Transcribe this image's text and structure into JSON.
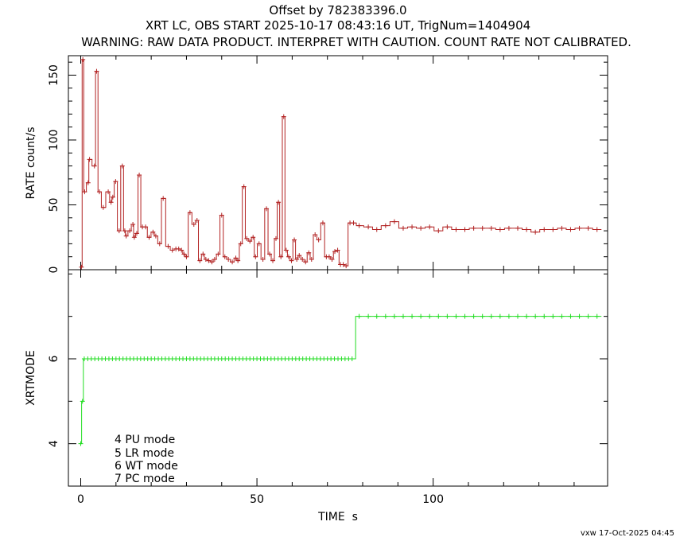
{
  "titles": {
    "line1": "Offset by 782383396.0",
    "line2": "XRT LC, OBS START 2025-10-17 08:43:16 UT, TrigNum=1404904",
    "line3": "WARNING: RAW DATA PRODUCT. INTERPRET WITH CAUTION. COUNT RATE NOT CALIBRATED."
  },
  "footer": "vxw 17-Oct-2025 04:45",
  "legend": [
    "4 PU mode",
    "5 LR mode",
    "6 WT mode",
    "7 PC mode"
  ],
  "colors": {
    "rate": "#b22222",
    "mode": "#22dd22",
    "axis": "#000000"
  },
  "chart_data": [
    {
      "type": "line",
      "panel": "top",
      "ylabel": "RATE  count/s",
      "xlim": [
        -3.5,
        149.5
      ],
      "ylim": [
        0,
        165
      ],
      "y_ticks": [
        "0",
        "50",
        "100",
        "150"
      ],
      "x_ticks": [
        "0",
        "50",
        "100"
      ],
      "series": [
        {
          "step": true,
          "x": [
            0.2,
            0.6,
            1.1,
            2.1,
            2.5,
            3.9,
            4.5,
            5.3,
            6.4,
            7.8,
            8.6,
            9.1,
            9.9,
            10.9,
            11.8,
            12.5,
            12.9,
            13.9,
            14.8,
            15.2,
            15.9,
            16.6,
            17.5,
            18.4,
            19.4,
            20.5,
            21.3,
            22.4,
            23.4,
            24.8,
            26.0,
            27.0,
            27.8,
            28.6,
            29.3,
            30.0,
            31.0,
            32.1,
            33.0,
            33.8,
            34.7,
            35.5,
            36.3,
            37.2,
            38.0,
            39.0,
            40.0,
            40.9,
            41.9,
            43.0,
            44.0,
            44.6,
            45.4,
            46.3,
            47.1,
            48.0,
            48.9,
            49.6,
            50.6,
            51.7,
            52.7,
            53.6,
            54.5,
            55.4,
            56.1,
            56.8,
            57.6,
            58.3,
            59.0,
            59.8,
            60.6,
            61.3,
            62.0,
            62.9,
            63.8,
            64.7,
            65.5,
            66.5,
            67.5,
            68.7,
            69.7,
            70.5,
            71.3,
            72.1,
            72.9,
            73.7,
            74.5,
            75.3,
            76.4,
            77.4,
            79.0,
            81.6,
            84.0,
            86.5,
            89.0,
            91.5,
            94.0,
            96.5,
            99.0,
            101.5,
            104.0,
            106.5,
            109.0,
            111.5,
            114.0,
            116.5,
            119.0,
            121.5,
            124.0,
            126.5,
            129.0,
            131.5,
            134.0,
            136.5,
            139.0,
            141.5,
            144.0,
            146.5
          ],
          "values": [
            2,
            162,
            60,
            67,
            85,
            80,
            153,
            60,
            48,
            60,
            52,
            56,
            68,
            30,
            80,
            30,
            26,
            30,
            35,
            25,
            28,
            73,
            33,
            33,
            25,
            29,
            26,
            20,
            55,
            18,
            15,
            16,
            16,
            15,
            12,
            10,
            44,
            35,
            38,
            7,
            12,
            8,
            7,
            6,
            8,
            12,
            42,
            10,
            8,
            6,
            9,
            7,
            20,
            64,
            24,
            22,
            25,
            10,
            20,
            8,
            47,
            12,
            7,
            24,
            52,
            10,
            118,
            15,
            10,
            7,
            23,
            8,
            11,
            8,
            6,
            13,
            8,
            27,
            23,
            36,
            10,
            10,
            8,
            14,
            15,
            4,
            4,
            3,
            36,
            36,
            34,
            33,
            31,
            34,
            37,
            32,
            33,
            32,
            33,
            30,
            33,
            31,
            31,
            32,
            32,
            32,
            31,
            32,
            32,
            31,
            29,
            31,
            31,
            32,
            31,
            32,
            32,
            31
          ]
        }
      ]
    },
    {
      "type": "line",
      "panel": "bottom",
      "xlabel": "TIME  s",
      "ylabel": "XRTMODE",
      "xlim": [
        -3.5,
        149.5
      ],
      "ylim": [
        3,
        8.1
      ],
      "y_ticks": [
        "4",
        "6"
      ],
      "x_ticks": [
        "0",
        "50",
        "100"
      ],
      "series": [
        {
          "step": true,
          "x": [
            0.0,
            0.5,
            1.0,
            2.0,
            3.0,
            4.0,
            5.0,
            6.0,
            7.0,
            8.0,
            9.0,
            10.0,
            11.0,
            12.0,
            13.0,
            14.0,
            15.0,
            16.0,
            17.0,
            18.0,
            19.0,
            20.0,
            21.0,
            22.0,
            23.0,
            24.0,
            25.0,
            26.0,
            27.0,
            28.0,
            29.0,
            30.0,
            31.0,
            32.0,
            33.0,
            34.0,
            35.0,
            36.0,
            37.0,
            38.0,
            39.0,
            40.0,
            41.0,
            42.0,
            43.0,
            44.0,
            45.0,
            46.0,
            47.0,
            48.0,
            49.0,
            50.0,
            51.0,
            52.0,
            53.0,
            54.0,
            55.0,
            56.0,
            57.0,
            58.0,
            59.0,
            60.0,
            61.0,
            62.0,
            63.0,
            64.0,
            65.0,
            66.0,
            67.0,
            68.0,
            69.0,
            70.0,
            71.0,
            72.0,
            73.0,
            74.0,
            75.0,
            76.0,
            77.0,
            79.0,
            81.6,
            84.0,
            86.5,
            89.0,
            91.5,
            94.0,
            96.5,
            99.0,
            101.5,
            104.0,
            106.5,
            109.0,
            111.5,
            114.0,
            116.5,
            119.0,
            121.5,
            124.0,
            126.5,
            129.0,
            131.5,
            134.0,
            136.5,
            139.0,
            141.5,
            144.0,
            146.5
          ],
          "values": [
            4,
            5,
            6,
            6,
            6,
            6,
            6,
            6,
            6,
            6,
            6,
            6,
            6,
            6,
            6,
            6,
            6,
            6,
            6,
            6,
            6,
            6,
            6,
            6,
            6,
            6,
            6,
            6,
            6,
            6,
            6,
            6,
            6,
            6,
            6,
            6,
            6,
            6,
            6,
            6,
            6,
            6,
            6,
            6,
            6,
            6,
            6,
            6,
            6,
            6,
            6,
            6,
            6,
            6,
            6,
            6,
            6,
            6,
            6,
            6,
            6,
            6,
            6,
            6,
            6,
            6,
            6,
            6,
            6,
            6,
            6,
            6,
            6,
            6,
            6,
            6,
            6,
            6,
            6,
            7,
            7,
            7,
            7,
            7,
            7,
            7,
            7,
            7,
            7,
            7,
            7,
            7,
            7,
            7,
            7,
            7,
            7,
            7,
            7,
            7,
            7,
            7,
            7,
            7,
            7,
            7,
            7
          ]
        }
      ]
    }
  ]
}
